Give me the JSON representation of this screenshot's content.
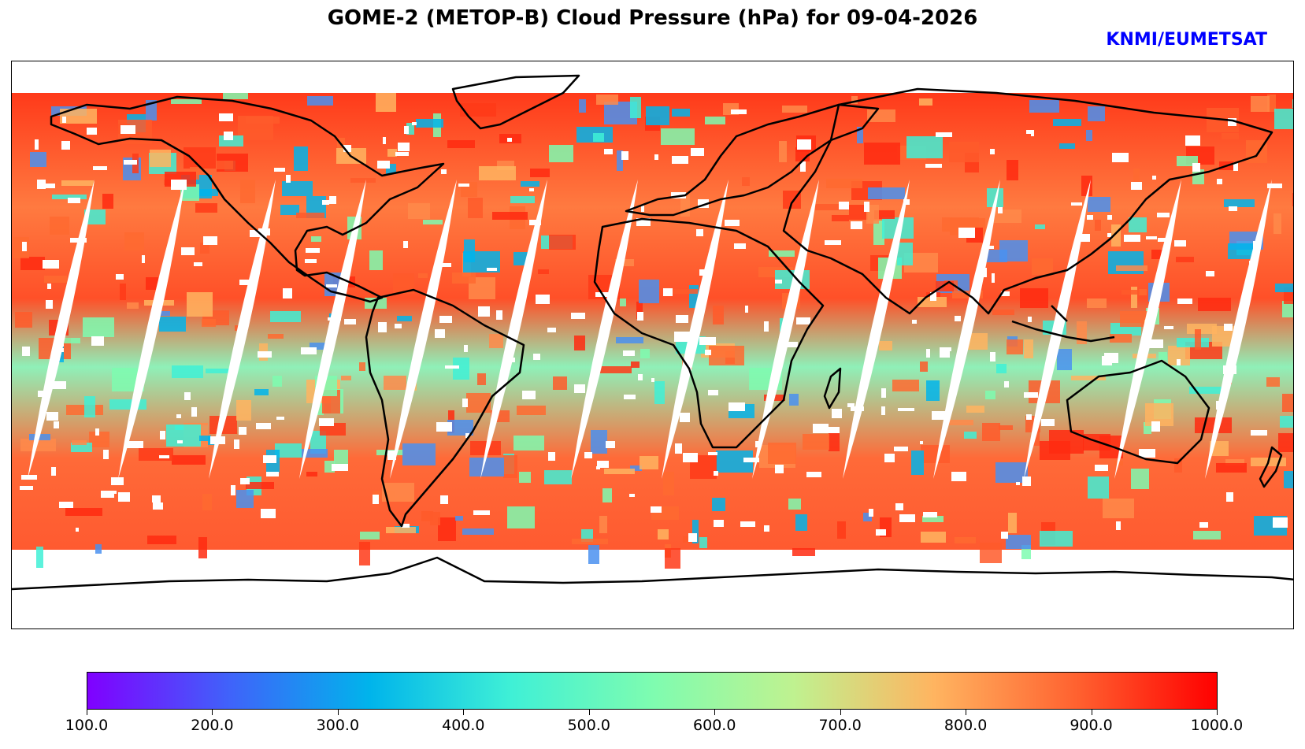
{
  "figure": {
    "title": "GOME-2 (METOP-B) Cloud Pressure (hPa) for 09-04-2026",
    "credit": "KNMI/EUMETSAT",
    "credit_color": "#0000ff"
  },
  "map": {
    "variable": "Cloud Pressure (hPa)",
    "projection": "plate-carree",
    "coastline_color": "#000000"
  },
  "colorbar": {
    "min": 100.0,
    "max": 1000.0,
    "colormap": "rainbow",
    "tick_labels": [
      "100.0",
      "200.0",
      "300.0",
      "400.0",
      "500.0",
      "600.0",
      "700.0",
      "800.0",
      "900.0",
      "1000.0"
    ],
    "colors": [
      "#8000ff",
      "#4062fa",
      "#00b4eb",
      "#3ff0d6",
      "#7efcb0",
      "#bff290",
      "#ffb460",
      "#ff6230",
      "#ff0000"
    ]
  }
}
